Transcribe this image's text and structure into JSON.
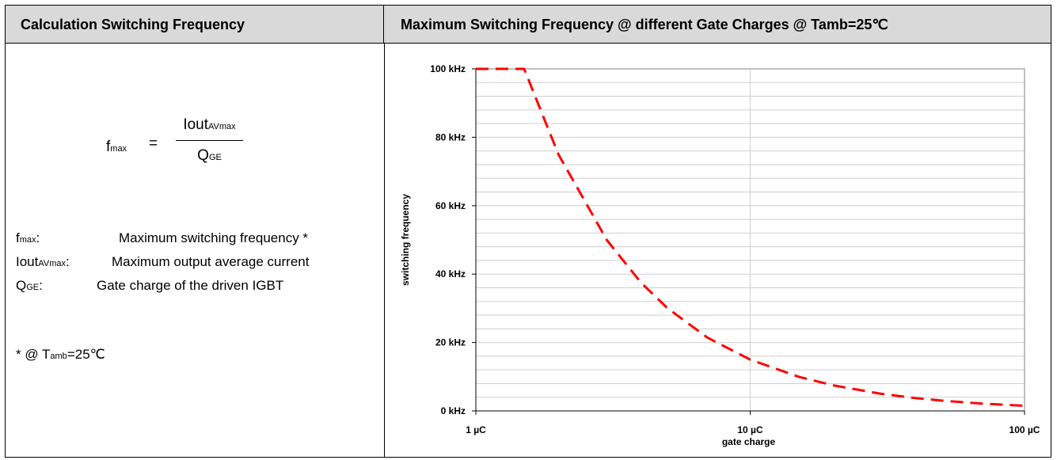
{
  "left_panel": {
    "header": "Calculation Switching Frequency",
    "formula": {
      "lhs_main": "f",
      "lhs_sub": "max",
      "equals": "=",
      "numerator_main": "Iout",
      "numerator_sub": "AVmax",
      "denominator_main": "Q",
      "denominator_sub": "GE"
    },
    "legend": [
      {
        "symbol_main": "f",
        "symbol_sub": "max",
        "colon": ":",
        "description": "Maximum switching frequency *"
      },
      {
        "symbol_main": "Iout",
        "symbol_sub": "AVmax",
        "colon": ":",
        "description": "Maximum output average current"
      },
      {
        "symbol_main": "Q",
        "symbol_sub": "GE",
        "colon": ":",
        "description": "Gate charge of the driven IGBT"
      }
    ],
    "footnote": {
      "prefix": "* @ T",
      "sub": "amb",
      "suffix": "=25℃"
    }
  },
  "right_panel": {
    "header": "Maximum Switching Frequency @ different Gate Charges @ Tamb=25℃"
  },
  "chart_data": {
    "type": "line",
    "title": "",
    "xlabel": "gate charge",
    "ylabel": "switching frequency",
    "x_scale": "log",
    "xlim": [
      1,
      100
    ],
    "ylim": [
      0,
      100
    ],
    "x_ticks": [
      {
        "value": 1,
        "label": "1 µC"
      },
      {
        "value": 10,
        "label": "10 µC"
      },
      {
        "value": 100,
        "label": "100 µC"
      }
    ],
    "y_ticks": [
      {
        "value": 0,
        "label": "0 kHz"
      },
      {
        "value": 20,
        "label": "20 kHz"
      },
      {
        "value": 40,
        "label": "40 kHz"
      },
      {
        "value": 60,
        "label": "60 kHz"
      },
      {
        "value": 80,
        "label": "80 kHz"
      },
      {
        "value": 100,
        "label": "100 kHz"
      }
    ],
    "grid": true,
    "line_color": "#ff0000",
    "line_style": "dashed",
    "series": [
      {
        "x": [
          1,
          1.5,
          2,
          3,
          4,
          5,
          7,
          10,
          15,
          20,
          30,
          40,
          50,
          70,
          100
        ],
        "values": [
          100,
          100,
          75,
          50,
          37.5,
          30,
          21.4,
          15,
          10,
          7.5,
          5,
          3.75,
          3,
          2.14,
          1.5
        ]
      }
    ]
  }
}
